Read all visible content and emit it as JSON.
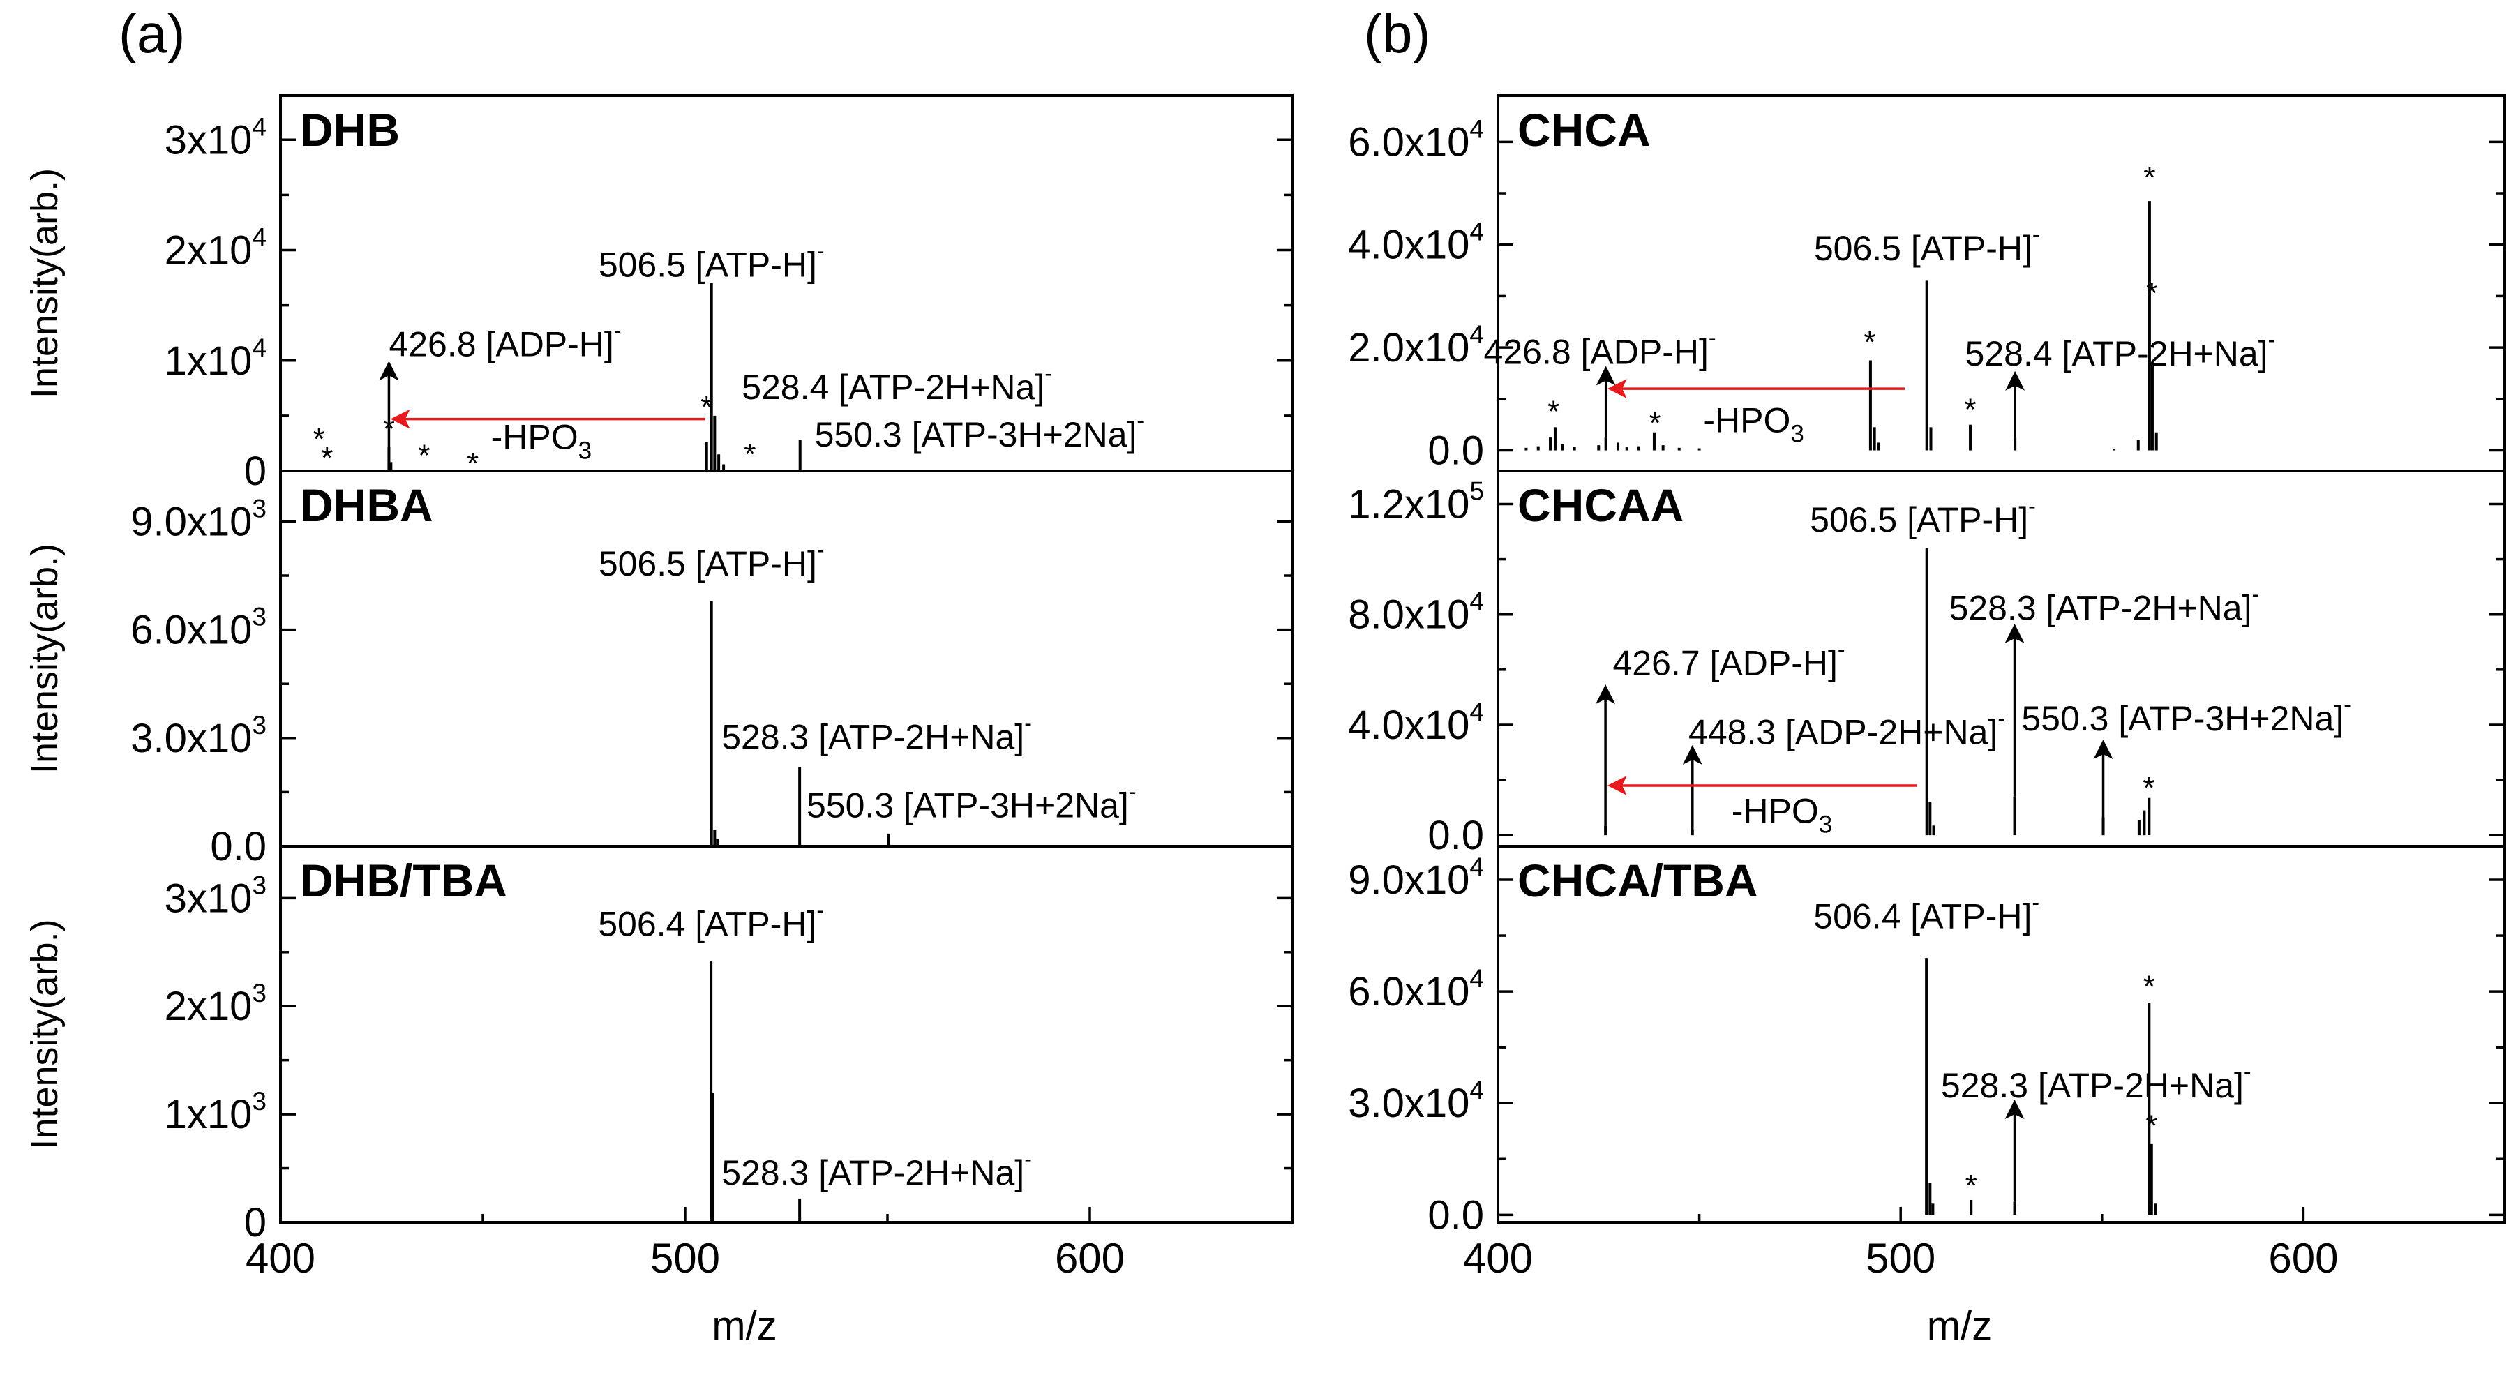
{
  "labels": {
    "a": "(a)",
    "b": "(b)"
  },
  "colors": {
    "arrow_red": "#e8191c",
    "black": "#000000"
  },
  "chart_data": [
    {
      "id": "a",
      "type": "line",
      "xlabel": "m/z",
      "xlim": [
        400,
        650
      ],
      "xticks": [
        400,
        500,
        600
      ],
      "xticklabels": [
        "400",
        "500",
        "600"
      ],
      "panels": [
        {
          "title": "DHB",
          "ylabel": "Intensity(arb.)",
          "ylim": [
            0,
            34000
          ],
          "yticks": [
            {
              "v": 0,
              "m": "0",
              "e": ""
            },
            {
              "v": 10000,
              "m": "1x10",
              "e": "4"
            },
            {
              "v": 20000,
              "m": "2x10",
              "e": "4"
            },
            {
              "v": 30000,
              "m": "3x10",
              "e": "4"
            }
          ],
          "minor_yticks": [
            5000,
            15000,
            25000
          ],
          "peaks": [
            [
              426.8,
              2200
            ],
            [
              427.3,
              800
            ],
            [
              505.3,
              2600
            ],
            [
              506.5,
              17000
            ],
            [
              507.3,
              5000
            ],
            [
              508.3,
              1500
            ],
            [
              509.5,
              600
            ],
            [
              528.4,
              2800
            ]
          ],
          "arrows": [
            [
              426.8,
              2200,
              9300
            ]
          ],
          "red_arrows": [
            [
              505,
              4700,
              429,
              4700
            ]
          ],
          "stars": [
            [
              409.5,
              3100
            ],
            [
              411.5,
              1400
            ],
            [
              426.8,
              4000
            ],
            [
              435.5,
              1600
            ],
            [
              447.5,
              900
            ],
            [
              505.3,
              6000
            ],
            [
              516,
              1700
            ]
          ],
          "annotations": [
            {
              "x": 426.8,
              "y": 10400,
              "anchor": "start",
              "text": "426.8 [ADP-H]",
              "sup": "-"
            },
            {
              "x": 506.5,
              "y": 17600,
              "anchor": "middle",
              "text": "506.5 [ATP-H]",
              "sup": "-"
            },
            {
              "x": 514,
              "y": 6500,
              "anchor": "start",
              "text": "528.4 [ATP-2H+Na]",
              "sup": "-"
            },
            {
              "x": 452,
              "y": 2000,
              "anchor": "start",
              "text": "-HPO",
              "sub": "3"
            },
            {
              "x": 532,
              "y": 2200,
              "anchor": "start",
              "text": "550.3 [ATP-3H+2Na]",
              "sup": "-"
            }
          ]
        },
        {
          "title": "DHBA",
          "ylabel": "Intensity(arb.)",
          "ylim": [
            0,
            10400
          ],
          "yticks": [
            {
              "v": 0,
              "m": "0.0",
              "e": ""
            },
            {
              "v": 3000,
              "m": "3.0x10",
              "e": "3"
            },
            {
              "v": 6000,
              "m": "6.0x10",
              "e": "3"
            },
            {
              "v": 9000,
              "m": "9.0x10",
              "e": "3"
            }
          ],
          "minor_yticks": [
            1500,
            4500,
            7500
          ],
          "peaks": [
            [
              506.5,
              6800
            ],
            [
              507.3,
              450
            ],
            [
              508,
              200
            ],
            [
              528.3,
              2200
            ],
            [
              550.3,
              350
            ]
          ],
          "arrows": [],
          "red_arrows": [],
          "stars": [],
          "annotations": [
            {
              "x": 506.5,
              "y": 7500,
              "anchor": "middle",
              "text": "506.5 [ATP-H]",
              "sup": "-"
            },
            {
              "x": 509,
              "y": 2700,
              "anchor": "start",
              "text": "528.3 [ATP-2H+Na]",
              "sup": "-"
            },
            {
              "x": 530,
              "y": 800,
              "anchor": "start",
              "text": "550.3 [ATP-3H+2Na]",
              "sup": "-"
            }
          ]
        },
        {
          "title": "DHB/TBA",
          "ylabel": "Intensity(arb.)",
          "ylim": [
            0,
            3480
          ],
          "yticks": [
            {
              "v": 0,
              "m": "0",
              "e": ""
            },
            {
              "v": 1000,
              "m": "1x10",
              "e": "3"
            },
            {
              "v": 2000,
              "m": "2x10",
              "e": "3"
            },
            {
              "v": 3000,
              "m": "3x10",
              "e": "3"
            }
          ],
          "minor_yticks": [
            500,
            1500,
            2500
          ],
          "peaks": [
            [
              506.4,
              2420
            ],
            [
              506.9,
              1200
            ],
            [
              528.3,
              220
            ]
          ],
          "arrows": [],
          "red_arrows": [],
          "stars": [],
          "annotations": [
            {
              "x": 506.4,
              "y": 2650,
              "anchor": "middle",
              "text": "506.4 [ATP-H]",
              "sup": "-"
            },
            {
              "x": 509,
              "y": 350,
              "anchor": "start",
              "text": "528.3 [ATP-2H+Na]",
              "sup": "-"
            }
          ]
        }
      ]
    },
    {
      "id": "b",
      "type": "line",
      "xlabel": "m/z",
      "xlim": [
        400,
        650
      ],
      "xticks": [
        400,
        500,
        600
      ],
      "xticklabels": [
        "400",
        "500",
        "600"
      ],
      "panels": [
        {
          "title": "CHCA",
          "ylabel": "",
          "ylim": [
            -4000,
            69000
          ],
          "yticks": [
            {
              "v": 0,
              "m": "0.0",
              "e": ""
            },
            {
              "v": 20000,
              "m": "2.0x10",
              "e": "4"
            },
            {
              "v": 40000,
              "m": "4.0x10",
              "e": "4"
            },
            {
              "v": 60000,
              "m": "6.0x10",
              "e": "4"
            }
          ],
          "minor_yticks": [
            10000,
            30000,
            50000
          ],
          "peaks": [
            [
              403,
              200
            ],
            [
              407,
              500
            ],
            [
              410,
              800
            ],
            [
              413,
              2500
            ],
            [
              414.2,
              4500
            ],
            [
              416,
              1200
            ],
            [
              419,
              700
            ],
            [
              425,
              1000
            ],
            [
              426.8,
              2500
            ],
            [
              429.8,
              1500
            ],
            [
              432,
              600
            ],
            [
              435,
              800
            ],
            [
              438.8,
              3500
            ],
            [
              441,
              1000
            ],
            [
              445,
              500
            ],
            [
              450,
              400
            ],
            [
              492.5,
              17500
            ],
            [
              493.5,
              4500
            ],
            [
              494.5,
              1500
            ],
            [
              506.5,
              33000
            ],
            [
              507.5,
              4500
            ],
            [
              517.3,
              5000
            ],
            [
              528.4,
              2500
            ],
            [
              553,
              300
            ],
            [
              559,
              2000
            ],
            [
              561.8,
              48500
            ],
            [
              562.5,
              17000
            ],
            [
              563.5,
              3500
            ]
          ],
          "arrows": [
            [
              528.4,
              2500,
              14000
            ],
            [
              426.8,
              2500,
              15000
            ]
          ],
          "red_arrows": [
            [
              501,
              12000,
              429,
              12000
            ]
          ],
          "stars": [
            [
              413.8,
              8000
            ],
            [
              439,
              5800
            ],
            [
              492.3,
              21500
            ],
            [
              517.3,
              8400
            ],
            [
              561.8,
              53500
            ],
            [
              562.4,
              31000
            ]
          ],
          "annotations": [
            {
              "x": 425.3,
              "y": 16800,
              "anchor": "middle",
              "text": "426.8 [ADP-H]",
              "sup": "-"
            },
            {
              "x": 506.5,
              "y": 37000,
              "anchor": "middle",
              "text": "506.5 [ATP-H]",
              "sup": "-"
            },
            {
              "x": 516,
              "y": 16500,
              "anchor": "start",
              "text": "528.4 [ATP-2H+Na]",
              "sup": "-"
            },
            {
              "x": 451,
              "y": 3500,
              "anchor": "start",
              "text": "-HPO",
              "sub": "3"
            }
          ]
        },
        {
          "title": "CHCAA",
          "ylabel": "",
          "ylim": [
            -4000,
            132000
          ],
          "yticks": [
            {
              "v": 0,
              "m": "0.0",
              "e": ""
            },
            {
              "v": 40000,
              "m": "4.0x10",
              "e": "4"
            },
            {
              "v": 80000,
              "m": "8.0x10",
              "e": "4"
            },
            {
              "v": 120000,
              "m": "1.2x10",
              "e": "5"
            }
          ],
          "minor_yticks": [
            20000,
            60000,
            100000
          ],
          "peaks": [
            [
              426.7,
              3500
            ],
            [
              448.3,
              2000
            ],
            [
              506.5,
              104000
            ],
            [
              507.3,
              12000
            ],
            [
              508.2,
              3500
            ],
            [
              528.3,
              14000
            ],
            [
              550.3,
              6500
            ],
            [
              559.2,
              5500
            ],
            [
              560.5,
              9000
            ],
            [
              561.7,
              13500
            ]
          ],
          "arrows": [
            [
              426.7,
              3500,
              52000
            ],
            [
              448.3,
              2000,
              30000
            ],
            [
              528.3,
              14000,
              74000
            ],
            [
              550.3,
              6500,
              32000
            ]
          ],
          "red_arrows": [
            [
              504,
              18000,
              429,
              18000
            ]
          ],
          "stars": [
            [
              561.6,
              18000
            ]
          ],
          "annotations": [
            {
              "x": 428.5,
              "y": 58000,
              "anchor": "start",
              "text": "426.7 [ADP-H]",
              "sup": "-"
            },
            {
              "x": 505.5,
              "y": 110000,
              "anchor": "middle",
              "text": "506.5 [ATP-H]",
              "sup": "-"
            },
            {
              "x": 447.3,
              "y": 33000,
              "anchor": "start",
              "text": "448.3 [ADP-2H+Na]",
              "sup": "-"
            },
            {
              "x": 512,
              "y": 78000,
              "anchor": "start",
              "text": "528.3 [ATP-2H+Na]",
              "sup": "-"
            },
            {
              "x": 530,
              "y": 38000,
              "anchor": "start",
              "text": "550.3 [ATP-3H+2Na]",
              "sup": "-"
            },
            {
              "x": 458,
              "y": 4500,
              "anchor": "start",
              "text": "-HPO",
              "sub": "3"
            }
          ]
        },
        {
          "title": "CHCA/TBA",
          "ylabel": "",
          "ylim": [
            -2000,
            99000
          ],
          "yticks": [
            {
              "v": 0,
              "m": "0.0",
              "e": ""
            },
            {
              "v": 30000,
              "m": "3.0x10",
              "e": "4"
            },
            {
              "v": 60000,
              "m": "6.0x10",
              "e": "4"
            },
            {
              "v": 90000,
              "m": "9.0x10",
              "e": "4"
            }
          ],
          "minor_yticks": [
            15000,
            45000,
            75000
          ],
          "peaks": [
            [
              506.4,
              69000
            ],
            [
              507.3,
              8500
            ],
            [
              508,
              3000
            ],
            [
              517.5,
              4000
            ],
            [
              528.3,
              3500
            ],
            [
              561.7,
              57000
            ],
            [
              562.3,
              19000
            ],
            [
              563.3,
              3000
            ]
          ],
          "arrows": [
            [
              528.3,
              3500,
              29000
            ]
          ],
          "red_arrows": [],
          "stars": [
            [
              517.5,
              8500
            ],
            [
              561.7,
              62000
            ],
            [
              562.3,
              24500
            ]
          ],
          "annotations": [
            {
              "x": 506.4,
              "y": 77000,
              "anchor": "middle",
              "text": "506.4 [ATP-H]",
              "sup": "-"
            },
            {
              "x": 510,
              "y": 31500,
              "anchor": "start",
              "text": "528.3 [ATP-2H+Na]",
              "sup": "-"
            }
          ]
        }
      ]
    }
  ]
}
